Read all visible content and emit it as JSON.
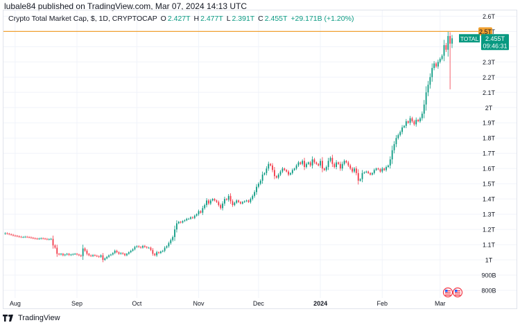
{
  "header": {
    "publisher_text": "lubale84 published on TradingView.com, Mar 07, 2024 14:13 UTC"
  },
  "legend": {
    "symbol": "Crypto Total Market Cap, $, 1D, CRYPTOCAP",
    "o_label": "O",
    "o_value": "2.427T",
    "h_label": "H",
    "h_value": "2.477T",
    "l_label": "L",
    "l_value": "2.391T",
    "c_label": "C",
    "c_value": "2.455T",
    "change": "+29.171B (+1.20%)"
  },
  "footer": {
    "brand": "TradingView"
  },
  "colors": {
    "up": "#089981",
    "down": "#f23645",
    "hline": "#f0a030",
    "grid": "#f0f3fa",
    "axis_text": "#131722"
  },
  "chart_data": {
    "type": "candlestick",
    "title": "Crypto Total Market Cap, $, 1D, CRYPTOCAP",
    "ylim": [
      0.75,
      2.62
    ],
    "y_ticks": [
      {
        "value": 2.6,
        "label": "2.6T"
      },
      {
        "value": 2.5,
        "label": "2.5T"
      },
      {
        "value": 2.4,
        "label": "2.4T"
      },
      {
        "value": 2.3,
        "label": "2.3T"
      },
      {
        "value": 2.2,
        "label": "2.2T"
      },
      {
        "value": 2.1,
        "label": "2.1T"
      },
      {
        "value": 2.0,
        "label": "2T"
      },
      {
        "value": 1.9,
        "label": "1.9T"
      },
      {
        "value": 1.8,
        "label": "1.8T"
      },
      {
        "value": 1.7,
        "label": "1.7T"
      },
      {
        "value": 1.6,
        "label": "1.6T"
      },
      {
        "value": 1.5,
        "label": "1.5T"
      },
      {
        "value": 1.4,
        "label": "1.4T"
      },
      {
        "value": 1.3,
        "label": "1.3T"
      },
      {
        "value": 1.2,
        "label": "1.2T"
      },
      {
        "value": 1.1,
        "label": "1.1T"
      },
      {
        "value": 1.0,
        "label": "1T"
      },
      {
        "value": 0.9,
        "label": "900B"
      },
      {
        "value": 0.8,
        "label": "800B"
      }
    ],
    "x_ticks": [
      {
        "index": 5,
        "label": "Aug",
        "bold": false
      },
      {
        "index": 36,
        "label": "Sep",
        "bold": false
      },
      {
        "index": 66,
        "label": "Oct",
        "bold": false
      },
      {
        "index": 97,
        "label": "Nov",
        "bold": false
      },
      {
        "index": 127,
        "label": "Dec",
        "bold": false
      },
      {
        "index": 158,
        "label": "2024",
        "bold": true
      },
      {
        "index": 189,
        "label": "Feb",
        "bold": false
      },
      {
        "index": 218,
        "label": "Mar",
        "bold": false
      }
    ],
    "horizontal_line": {
      "value": 2.5,
      "label": "2.5T"
    },
    "last_price": {
      "name": "TOTAL",
      "value": 2.455,
      "label": "2.455T",
      "countdown": "09:46:31"
    },
    "closes": [
      1.175,
      1.172,
      1.168,
      1.165,
      1.16,
      1.158,
      1.155,
      1.152,
      1.15,
      1.15,
      1.152,
      1.15,
      1.148,
      1.145,
      1.142,
      1.14,
      1.138,
      1.14,
      1.142,
      1.14,
      1.138,
      1.135,
      1.136,
      1.138,
      1.095,
      1.08,
      1.04,
      1.035,
      1.04,
      1.03,
      1.035,
      1.04,
      1.032,
      1.035,
      1.038,
      1.04,
      1.035,
      1.03,
      1.025,
      1.075,
      1.06,
      1.04,
      1.03,
      1.025,
      1.032,
      1.028,
      1.024,
      1.02,
      1.03,
      1.0,
      1.01,
      1.02,
      1.03,
      1.035,
      1.045,
      1.06,
      1.05,
      1.04,
      1.045,
      1.04,
      1.03,
      1.04,
      1.05,
      1.06,
      1.07,
      1.085,
      1.09,
      1.085,
      1.08,
      1.092,
      1.085,
      1.08,
      1.08,
      1.065,
      1.04,
      1.03,
      1.05,
      1.045,
      1.055,
      1.06,
      1.08,
      1.09,
      1.11,
      1.13,
      1.15,
      1.2,
      1.24,
      1.25,
      1.245,
      1.255,
      1.26,
      1.27,
      1.27,
      1.28,
      1.275,
      1.29,
      1.3,
      1.32,
      1.31,
      1.34,
      1.36,
      1.39,
      1.37,
      1.39,
      1.4,
      1.39,
      1.38,
      1.36,
      1.34,
      1.37,
      1.4,
      1.395,
      1.42,
      1.385,
      1.36,
      1.375,
      1.39,
      1.38,
      1.37,
      1.38,
      1.385,
      1.39,
      1.38,
      1.4,
      1.42,
      1.445,
      1.48,
      1.5,
      1.52,
      1.56,
      1.57,
      1.6,
      1.63,
      1.62,
      1.59,
      1.55,
      1.54,
      1.56,
      1.58,
      1.6,
      1.59,
      1.58,
      1.56,
      1.57,
      1.59,
      1.6,
      1.62,
      1.64,
      1.63,
      1.65,
      1.61,
      1.63,
      1.64,
      1.62,
      1.66,
      1.64,
      1.63,
      1.62,
      1.65,
      1.6,
      1.59,
      1.61,
      1.65,
      1.67,
      1.63,
      1.61,
      1.64,
      1.63,
      1.6,
      1.63,
      1.65,
      1.64,
      1.62,
      1.6,
      1.58,
      1.6,
      1.57,
      1.52,
      1.53,
      1.57,
      1.575,
      1.58,
      1.57,
      1.56,
      1.57,
      1.59,
      1.6,
      1.595,
      1.58,
      1.6,
      1.59,
      1.61,
      1.62,
      1.66,
      1.72,
      1.76,
      1.8,
      1.82,
      1.84,
      1.87,
      1.88,
      1.91,
      1.9,
      1.93,
      1.91,
      1.89,
      1.92,
      1.91,
      1.93,
      1.96,
      2.02,
      2.1,
      2.15,
      2.2,
      2.26,
      2.29,
      2.27,
      2.3,
      2.32,
      2.34,
      2.41,
      2.38,
      2.47,
      2.42,
      2.455
    ]
  }
}
